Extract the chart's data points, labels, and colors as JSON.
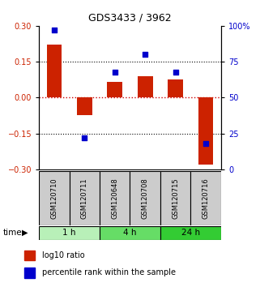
{
  "title": "GDS3433 / 3962",
  "samples": [
    "GSM120710",
    "GSM120711",
    "GSM120648",
    "GSM120708",
    "GSM120715",
    "GSM120716"
  ],
  "log10_ratio": [
    0.22,
    -0.075,
    0.065,
    0.09,
    0.075,
    -0.28
  ],
  "percentile_rank": [
    97,
    22,
    68,
    80,
    68,
    18
  ],
  "groups": [
    {
      "label": "1 h",
      "samples": [
        0,
        1
      ],
      "color": "#b8f0b8"
    },
    {
      "label": "4 h",
      "samples": [
        2,
        3
      ],
      "color": "#66dd66"
    },
    {
      "label": "24 h",
      "samples": [
        4,
        5
      ],
      "color": "#33cc33"
    }
  ],
  "bar_color": "#cc2200",
  "dot_color": "#0000cc",
  "ylim_left": [
    -0.3,
    0.3
  ],
  "ylim_right": [
    0,
    100
  ],
  "yticks_left": [
    -0.3,
    -0.15,
    0,
    0.15,
    0.3
  ],
  "yticks_right": [
    0,
    25,
    50,
    75,
    100
  ],
  "hlines_dotted": [
    -0.15,
    0.15
  ],
  "zero_line_color": "#cc0000",
  "bg_color": "#ffffff",
  "bar_width": 0.5,
  "label_box_color": "#cccccc",
  "figsize": [
    3.21,
    3.54
  ],
  "dpi": 100
}
